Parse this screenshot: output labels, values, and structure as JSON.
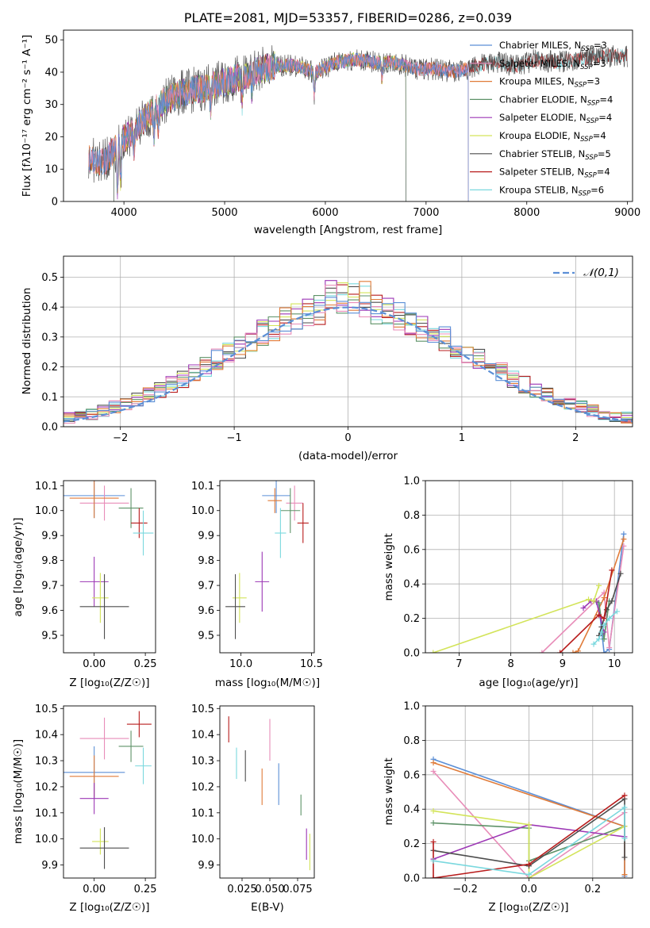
{
  "colors": {
    "chabrier_miles": "#5b8fd6",
    "salpeter_miles": "#e88cb8",
    "kroupa_miles": "#e07b39",
    "chabrier_elodie": "#5e9268",
    "salpeter_elodie": "#9c36b5",
    "kroupa_elodie": "#d3e45a",
    "chabrier_stelib": "#4d4d4d",
    "salpeter_stelib": "#b81c1c",
    "kroupa_stelib": "#7ad8de",
    "normal": "#5b8fd6"
  },
  "chart_data": [
    {
      "type": "line",
      "title": "PLATE=2081, MJD=53357, FIBERID=0286, z=0.039",
      "xlabel": "wavelength [Angstrom, rest frame]",
      "ylabel": "Flux [fλ10⁻¹⁷ erg cm⁻² s⁻¹ A⁻¹]",
      "xlim": [
        3400,
        9050
      ],
      "ylim": [
        0,
        53
      ],
      "xticks": [
        "4000",
        "5000",
        "6000",
        "7000",
        "8000",
        "9000"
      ],
      "yticks": [
        "0",
        "10",
        "20",
        "30",
        "40",
        "50"
      ],
      "legend_position": "right",
      "legend": [
        {
          "name": "Chabrier MILES",
          "n": "3"
        },
        {
          "name": "Salpeter MILES",
          "n": "3"
        },
        {
          "name": "Kroupa MILES",
          "n": "3"
        },
        {
          "name": "Chabrier ELODIE",
          "n": "4"
        },
        {
          "name": "Salpeter ELODIE",
          "n": "4"
        },
        {
          "name": "Kroupa ELODIE",
          "n": "4"
        },
        {
          "name": "Chabrier STELIB",
          "n": "5"
        },
        {
          "name": "Salpeter STELIB",
          "n": "4"
        },
        {
          "name": "Kroupa STELIB",
          "n": "6"
        }
      ],
      "legend_sub": "SSP",
      "continuum": [
        [
          3650,
          13
        ],
        [
          3800,
          12
        ],
        [
          3950,
          18
        ],
        [
          4100,
          22
        ],
        [
          4250,
          27
        ],
        [
          4400,
          31
        ],
        [
          4600,
          34
        ],
        [
          4800,
          35
        ],
        [
          5000,
          37
        ],
        [
          5200,
          39
        ],
        [
          5300,
          40
        ],
        [
          5500,
          42
        ],
        [
          5700,
          42
        ],
        [
          5900,
          40
        ],
        [
          6100,
          43
        ],
        [
          6300,
          44
        ],
        [
          6500,
          43
        ],
        [
          6700,
          43
        ],
        [
          6900,
          41
        ],
        [
          7100,
          41
        ],
        [
          7300,
          40
        ],
        [
          7500,
          42
        ],
        [
          7700,
          43
        ],
        [
          7900,
          42
        ],
        [
          8100,
          44
        ],
        [
          8300,
          43
        ],
        [
          8500,
          44
        ],
        [
          8800,
          45
        ],
        [
          9000,
          45
        ]
      ],
      "model_ranges": [
        [
          3650,
          7420
        ],
        [
          3650,
          7420
        ],
        [
          3650,
          7420
        ],
        [
          3900,
          6800
        ],
        [
          3900,
          6800
        ],
        [
          3900,
          6800
        ],
        [
          3650,
          9000
        ],
        [
          3650,
          9000
        ],
        [
          3650,
          9000
        ]
      ]
    },
    {
      "type": "bar",
      "xlabel": "(data-model)/error",
      "ylabel": "Normed distribution",
      "xlim": [
        -2.5,
        2.5
      ],
      "ylim": [
        0,
        0.57
      ],
      "xticks": [
        "−2",
        "−1",
        "0",
        "1",
        "2"
      ],
      "yticks": [
        "0.0",
        "0.1",
        "0.2",
        "0.3",
        "0.4",
        "0.5"
      ],
      "bin_width": 0.1,
      "legend_label": "𝒩(0,1)",
      "legend_position": "top-right",
      "bins_from": -2.5
    },
    {
      "type": "scatter",
      "xlabel": "Z [log₁₀(Z/Z☉)]",
      "ylabel": "age  [log₁₀(age/yr)]",
      "xlim": [
        -0.15,
        0.3
      ],
      "ylim": [
        9.43,
        10.12
      ],
      "xticks": [
        "0.00",
        "0.25"
      ],
      "yticks": [
        "9.5",
        "9.6",
        "9.7",
        "9.8",
        "9.9",
        "10.0",
        "10.1"
      ],
      "points": [
        {
          "x": 0.0,
          "y": 10.06,
          "xe": 0.15,
          "ye": 0.09
        },
        {
          "x": 0.05,
          "y": 10.03,
          "xe": 0.12,
          "ye": 0.07
        },
        {
          "x": 0.0,
          "y": 10.05,
          "xe": 0.12,
          "ye": 0.08
        },
        {
          "x": 0.18,
          "y": 10.01,
          "xe": 0.06,
          "ye": 0.08
        },
        {
          "x": 0.0,
          "y": 9.715,
          "xe": 0.07,
          "ye": 0.1
        },
        {
          "x": 0.03,
          "y": 9.65,
          "xe": 0.04,
          "ye": 0.1
        },
        {
          "x": 0.05,
          "y": 9.615,
          "xe": 0.12,
          "ye": 0.13
        },
        {
          "x": 0.22,
          "y": 9.95,
          "xe": 0.04,
          "ye": 0.06
        },
        {
          "x": 0.24,
          "y": 9.91,
          "xe": 0.05,
          "ye": 0.09
        }
      ]
    },
    {
      "type": "scatter",
      "xlabel": "mass [log₁₀(M/M☉)]",
      "ylabel": "",
      "xlim": [
        9.85,
        10.52
      ],
      "ylim": [
        9.43,
        10.12
      ],
      "xticks": [
        "10.0",
        "10.5"
      ],
      "yticks": [
        "9.5",
        "9.6",
        "9.7",
        "9.8",
        "9.9",
        "10.0",
        "10.1"
      ],
      "points": [
        {
          "x": 10.25,
          "y": 10.06,
          "xe": 0.1,
          "ye": 0.07
        },
        {
          "x": 10.38,
          "y": 10.03,
          "xe": 0.06,
          "ye": 0.07
        },
        {
          "x": 10.24,
          "y": 10.04,
          "xe": 0.05,
          "ye": 0.05
        },
        {
          "x": 10.35,
          "y": 10.0,
          "xe": 0.07,
          "ye": 0.09
        },
        {
          "x": 10.15,
          "y": 9.715,
          "xe": 0.05,
          "ye": 0.12
        },
        {
          "x": 9.99,
          "y": 9.65,
          "xe": 0.05,
          "ye": 0.1
        },
        {
          "x": 9.96,
          "y": 9.615,
          "xe": 0.07,
          "ye": 0.13
        },
        {
          "x": 10.44,
          "y": 9.95,
          "xe": 0.04,
          "ye": 0.08
        },
        {
          "x": 10.28,
          "y": 9.91,
          "xe": 0.04,
          "ye": 0.1
        }
      ]
    },
    {
      "type": "line",
      "xlabel": "age  [log₁₀(age/yr)]",
      "ylabel": "mass weight",
      "xlim": [
        6.35,
        10.35
      ],
      "ylim": [
        0,
        1.0
      ],
      "xticks": [
        "7",
        "8",
        "9",
        "10"
      ],
      "yticks": [
        "0.0",
        "0.2",
        "0.4",
        "0.6",
        "0.8",
        "1.0"
      ],
      "series": [
        {
          "x": [
            9.7,
            9.8,
            9.9,
            10.18
          ],
          "y": [
            0.28,
            0.0,
            0.02,
            0.69
          ]
        },
        {
          "x": [
            8.6,
            9.8,
            9.9,
            10.18
          ],
          "y": [
            0.0,
            0.35,
            0.03,
            0.62
          ]
        },
        {
          "x": [
            9.2,
            9.3,
            9.8,
            10.18
          ],
          "y": [
            0.0,
            0.01,
            0.32,
            0.66
          ]
        },
        {
          "x": [
            9.6,
            9.7,
            9.8,
            9.9
          ],
          "y": [
            0.3,
            0.29,
            0.08,
            0.3
          ]
        },
        {
          "x": [
            9.4,
            9.55,
            9.65,
            9.8
          ],
          "y": [
            0.26,
            0.3,
            0.3,
            0.12
          ]
        },
        {
          "x": [
            6.5,
            9.5,
            9.6,
            9.7
          ],
          "y": [
            0.0,
            0.31,
            0.3,
            0.39
          ]
        },
        {
          "x": [
            9.7,
            9.75,
            9.85,
            9.95,
            10.12
          ],
          "y": [
            0.1,
            0.15,
            0.25,
            0.3,
            0.46
          ]
        },
        {
          "x": [
            8.95,
            9.7,
            9.8,
            9.95
          ],
          "y": [
            0.0,
            0.22,
            0.2,
            0.48
          ]
        },
        {
          "x": [
            9.6,
            9.7,
            9.75,
            9.8,
            9.9,
            10.05
          ],
          "y": [
            0.05,
            0.08,
            0.12,
            0.16,
            0.2,
            0.24
          ]
        }
      ]
    },
    {
      "type": "scatter",
      "xlabel": "Z [log₁₀(Z/Z☉)]",
      "ylabel": "mass [log₁₀(M/M☉)]",
      "xlim": [
        -0.15,
        0.3
      ],
      "ylim": [
        9.85,
        10.51
      ],
      "xticks": [
        "0.00",
        "0.25"
      ],
      "yticks": [
        "9.9",
        "10.0",
        "10.1",
        "10.2",
        "10.3",
        "10.4",
        "10.5"
      ],
      "points": [
        {
          "x": 0.0,
          "y": 10.255,
          "xe": 0.15,
          "ye": 0.1
        },
        {
          "x": 0.05,
          "y": 10.385,
          "xe": 0.12,
          "ye": 0.08
        },
        {
          "x": 0.0,
          "y": 10.24,
          "xe": 0.12,
          "ye": 0.08
        },
        {
          "x": 0.18,
          "y": 10.355,
          "xe": 0.06,
          "ye": 0.06
        },
        {
          "x": 0.0,
          "y": 10.155,
          "xe": 0.07,
          "ye": 0.06
        },
        {
          "x": 0.03,
          "y": 9.99,
          "xe": 0.04,
          "ye": 0.05
        },
        {
          "x": 0.05,
          "y": 9.965,
          "xe": 0.12,
          "ye": 0.08
        },
        {
          "x": 0.22,
          "y": 10.44,
          "xe": 0.06,
          "ye": 0.05
        },
        {
          "x": 0.24,
          "y": 10.28,
          "xe": 0.04,
          "ye": 0.07
        }
      ]
    },
    {
      "type": "scatter",
      "xlabel": "E(B-V)",
      "ylabel": "",
      "xlim": [
        0.005,
        0.09
      ],
      "ylim": [
        9.85,
        10.51
      ],
      "xticks": [
        "0.025",
        "0.050",
        "0.075"
      ],
      "yticks": [
        "9.9",
        "10.0",
        "10.1",
        "10.2",
        "10.3",
        "10.4",
        "10.5"
      ],
      "points": [
        {
          "x": 0.058,
          "y": 10.21,
          "ye": 0.08
        },
        {
          "x": 0.05,
          "y": 10.38,
          "ye": 0.08
        },
        {
          "x": 0.043,
          "y": 10.2,
          "ye": 0.07
        },
        {
          "x": 0.078,
          "y": 10.13,
          "ye": 0.04
        },
        {
          "x": 0.083,
          "y": 9.98,
          "ye": 0.06
        },
        {
          "x": 0.086,
          "y": 9.95,
          "ye": 0.07
        },
        {
          "x": 0.028,
          "y": 10.28,
          "ye": 0.06
        },
        {
          "x": 0.013,
          "y": 10.42,
          "ye": 0.05
        },
        {
          "x": 0.02,
          "y": 10.29,
          "ye": 0.06
        }
      ]
    },
    {
      "type": "line",
      "xlabel": "Z [log₁₀(Z/Z☉)]",
      "ylabel": "mass weight",
      "xlim": [
        -0.325,
        0.325
      ],
      "ylim": [
        0,
        1.0
      ],
      "xticks": [
        "−0.2",
        "0.0",
        "0.2"
      ],
      "yticks": [
        "0.0",
        "0.2",
        "0.4",
        "0.6",
        "0.8",
        "1.0"
      ],
      "series": [
        {
          "x": [
            -0.3,
            0.3,
            0.3
          ],
          "y": [
            0.69,
            0.3,
            0.01
          ]
        },
        {
          "x": [
            -0.3,
            0.0,
            0.3
          ],
          "y": [
            0.62,
            0.0,
            0.38
          ]
        },
        {
          "x": [
            -0.3,
            0.3,
            0.3
          ],
          "y": [
            0.67,
            0.3,
            0.02
          ]
        },
        {
          "x": [
            -0.3,
            0.0,
            0.0,
            0.3
          ],
          "y": [
            0.32,
            0.29,
            0.1,
            0.3
          ]
        },
        {
          "x": [
            -0.3,
            0.0,
            0.3
          ],
          "y": [
            0.11,
            0.31,
            0.24
          ]
        },
        {
          "x": [
            -0.3,
            0.0,
            0.0,
            0.3
          ],
          "y": [
            0.39,
            0.31,
            0.0,
            0.3
          ]
        },
        {
          "x": [
            -0.3,
            0.0,
            0.3,
            0.3
          ],
          "y": [
            0.16,
            0.07,
            0.46,
            0.12
          ]
        },
        {
          "x": [
            -0.3,
            -0.3,
            0.0,
            0.3
          ],
          "y": [
            0.21,
            0.0,
            0.08,
            0.48
          ]
        },
        {
          "x": [
            -0.3,
            0.0,
            0.3,
            0.3
          ],
          "y": [
            0.1,
            0.02,
            0.41,
            0.23
          ]
        }
      ]
    }
  ]
}
